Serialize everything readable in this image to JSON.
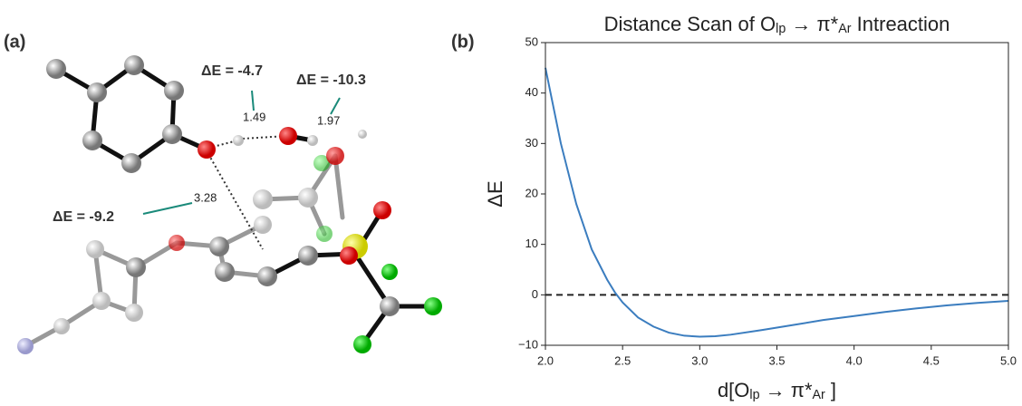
{
  "panel_a": {
    "label": "(a)",
    "annotations": [
      {
        "energy": "ΔE = -4.7",
        "distance": "1.49"
      },
      {
        "energy": "ΔE = -10.3",
        "distance": "1.97"
      },
      {
        "energy": "ΔE = -9.2",
        "distance": "3.28"
      }
    ]
  },
  "chart_data": {
    "type": "line",
    "panel_label": "(b)",
    "title": [
      "Distance Scan of  O",
      "lp",
      " → π*",
      "Ar",
      " Intreaction"
    ],
    "xlabel": [
      "d[O",
      "lp",
      " → π*",
      "Ar",
      " ]"
    ],
    "ylabel": "ΔE",
    "x": [
      2.0,
      2.1,
      2.2,
      2.3,
      2.4,
      2.45,
      2.5,
      2.6,
      2.7,
      2.8,
      2.9,
      3.0,
      3.1,
      3.2,
      3.4,
      3.6,
      3.8,
      4.0,
      4.2,
      4.4,
      4.6,
      4.8,
      5.0
    ],
    "values": [
      45,
      30,
      18,
      9,
      3,
      0.5,
      -1.5,
      -4.5,
      -6.3,
      -7.5,
      -8.1,
      -8.3,
      -8.2,
      -7.9,
      -7.0,
      -6.0,
      -5.0,
      -4.2,
      -3.4,
      -2.7,
      -2.1,
      -1.6,
      -1.2
    ],
    "color": "#3b7dbf",
    "hline": 0,
    "xlim": [
      2.0,
      5.0
    ],
    "xticks": [
      {
        "value": 2.0,
        "label": "2.0"
      },
      {
        "value": 2.5,
        "label": "2.5"
      },
      {
        "value": 3.0,
        "label": "3.0"
      },
      {
        "value": 3.5,
        "label": "3.5"
      },
      {
        "value": 4.0,
        "label": "4.0"
      },
      {
        "value": 4.5,
        "label": "4.5"
      },
      {
        "value": 5.0,
        "label": "5.0"
      }
    ],
    "ylim": [
      -10,
      50
    ],
    "yticks": [
      {
        "value": -10,
        "label": "−10"
      },
      0,
      10,
      20,
      30,
      40,
      50
    ]
  }
}
